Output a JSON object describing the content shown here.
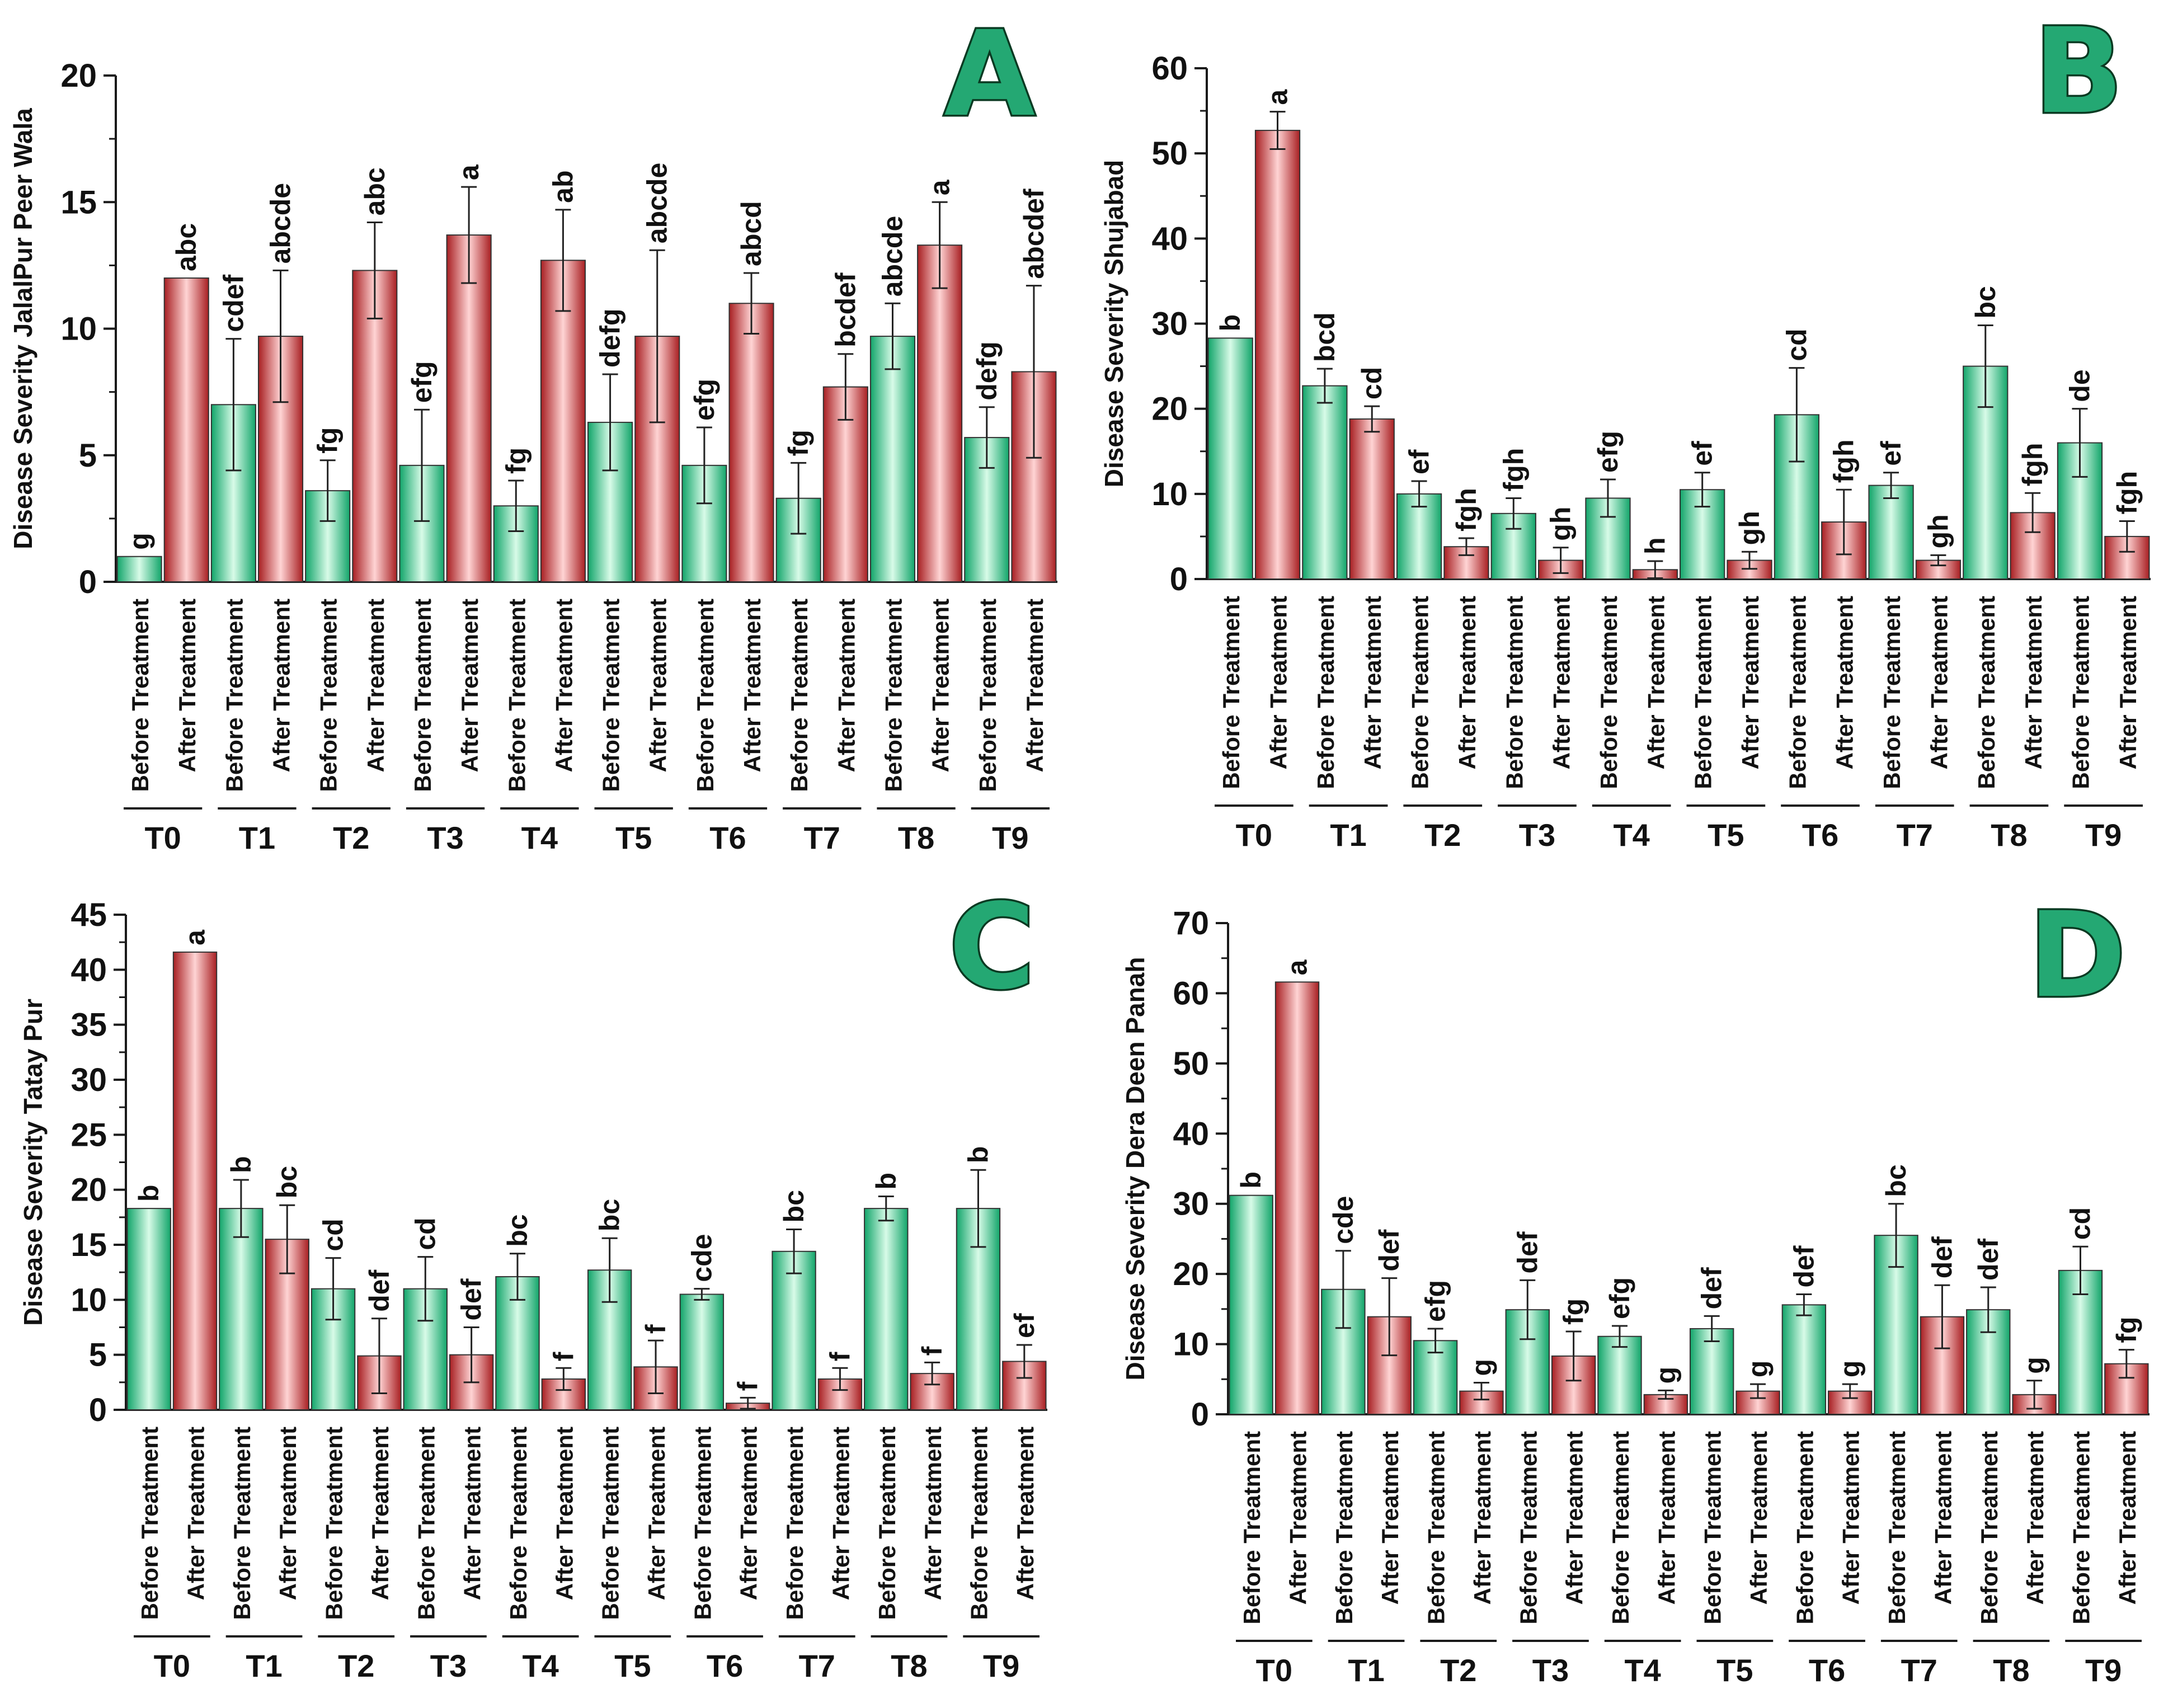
{
  "colors": {
    "before_edge": "#12a56a",
    "before_center": "#d8fbe8",
    "after_edge": "#a81f22",
    "after_center": "#ffd4d4",
    "letter_fill": "#24a873",
    "letter_stroke": "#0a3a22",
    "axis": "#1a1a1a",
    "text": "#111111"
  },
  "chart_data": [
    {
      "type": "bar",
      "panel": "A",
      "ylabel": "Disease Severity JalalPur Peer Wala",
      "ylim": [
        0,
        20
      ],
      "yticks": [
        "0",
        "5",
        "10",
        "15",
        "20"
      ],
      "groups": [
        "T0",
        "T1",
        "T2",
        "T3",
        "T4",
        "T5",
        "T6",
        "T7",
        "T8",
        "T9"
      ],
      "series": [
        {
          "name": "Before Treatment",
          "values": [
            1.0,
            7.0,
            3.6,
            4.6,
            3.0,
            6.3,
            4.6,
            3.3,
            9.7,
            5.7
          ],
          "errors": [
            0,
            2.6,
            1.2,
            2.2,
            1.0,
            1.9,
            1.5,
            1.4,
            1.3,
            1.2
          ],
          "letters": [
            "g",
            "cdef",
            "fg",
            "efg",
            "fg",
            "defg",
            "efg",
            "fg",
            "abcde",
            "defg"
          ]
        },
        {
          "name": "After Treatment",
          "values": [
            12.0,
            9.7,
            12.3,
            13.7,
            12.7,
            9.7,
            11.0,
            7.7,
            13.3,
            8.3
          ],
          "errors": [
            0,
            2.6,
            1.9,
            1.9,
            2.0,
            3.4,
            1.2,
            1.3,
            1.7,
            3.4
          ],
          "letters": [
            "abc",
            "abcde",
            "abc",
            "a",
            "ab",
            "abcde",
            "abcd",
            "bcdef",
            "a",
            "abcdef"
          ]
        }
      ]
    },
    {
      "type": "bar",
      "panel": "B",
      "ylabel": "Disease Severity Shujabad",
      "ylim": [
        0,
        60
      ],
      "yticks": [
        "0",
        "10",
        "20",
        "30",
        "40",
        "50",
        "60"
      ],
      "groups": [
        "T0",
        "T1",
        "T2",
        "T3",
        "T4",
        "T5",
        "T6",
        "T7",
        "T8",
        "T9"
      ],
      "series": [
        {
          "name": "Before Treatment",
          "values": [
            28.3,
            22.7,
            10.0,
            7.7,
            9.5,
            10.5,
            19.3,
            11.0,
            25.0,
            16.0
          ],
          "errors": [
            0,
            2.0,
            1.5,
            1.8,
            2.2,
            2.0,
            5.5,
            1.5,
            4.8,
            4.0
          ],
          "letters": [
            "b",
            "bcd",
            "ef",
            "fgh",
            "efg",
            "ef",
            "cd",
            "ef",
            "bc",
            "de"
          ]
        },
        {
          "name": "After Treatment",
          "values": [
            52.7,
            18.8,
            3.8,
            2.2,
            1.1,
            2.2,
            6.7,
            2.2,
            7.8,
            5.0
          ],
          "errors": [
            2.2,
            1.5,
            1.0,
            1.5,
            1.0,
            1.0,
            3.8,
            0.6,
            2.3,
            1.8
          ],
          "letters": [
            "a",
            "cd",
            "fgh",
            "gh",
            "h",
            "gh",
            "fgh",
            "gh",
            "fgh",
            "fgh"
          ]
        }
      ]
    },
    {
      "type": "bar",
      "panel": "C",
      "ylabel": "Disease Severity Tatay Pur",
      "ylim": [
        0,
        45
      ],
      "yticks": [
        "0",
        "5",
        "10",
        "15",
        "20",
        "25",
        "30",
        "35",
        "40",
        "45"
      ],
      "groups": [
        "T0",
        "T1",
        "T2",
        "T3",
        "T4",
        "T5",
        "T6",
        "T7",
        "T8",
        "T9"
      ],
      "series": [
        {
          "name": "Before Treatment",
          "values": [
            18.3,
            18.3,
            11.0,
            11.0,
            12.1,
            12.7,
            10.5,
            14.4,
            18.3,
            18.3
          ],
          "errors": [
            0,
            2.6,
            2.8,
            2.9,
            2.1,
            2.9,
            0.5,
            2.0,
            1.1,
            3.5
          ],
          "letters": [
            "b",
            "b",
            "cd",
            "cd",
            "bc",
            "bc",
            "cde",
            "bc",
            "b",
            "b"
          ]
        },
        {
          "name": "After Treatment",
          "values": [
            41.6,
            15.5,
            4.9,
            5.0,
            2.8,
            3.9,
            0.6,
            2.8,
            3.3,
            4.4
          ],
          "errors": [
            0,
            3.1,
            3.4,
            2.5,
            1.0,
            2.4,
            0.5,
            1.0,
            1.0,
            1.5
          ],
          "letters": [
            "a",
            "bc",
            "def",
            "def",
            "f",
            "f",
            "f",
            "f",
            "f",
            "ef"
          ]
        }
      ]
    },
    {
      "type": "bar",
      "panel": "D",
      "ylabel": "Disease Severity Dera Deen Panah",
      "ylim": [
        0,
        70
      ],
      "yticks": [
        "0",
        "10",
        "20",
        "30",
        "40",
        "50",
        "60",
        "70"
      ],
      "groups": [
        "T0",
        "T1",
        "T2",
        "T3",
        "T4",
        "T5",
        "T6",
        "T7",
        "T8",
        "T9"
      ],
      "series": [
        {
          "name": "Before Treatment",
          "values": [
            31.2,
            17.8,
            10.5,
            14.9,
            11.1,
            12.2,
            15.6,
            25.5,
            14.9,
            20.5
          ],
          "errors": [
            0,
            5.5,
            1.7,
            4.2,
            1.5,
            1.8,
            1.5,
            4.5,
            3.2,
            3.4
          ],
          "letters": [
            "b",
            "cde",
            "efg",
            "def",
            "efg",
            "def",
            "def",
            "bc",
            "def",
            "cd"
          ]
        },
        {
          "name": "After Treatment",
          "values": [
            61.6,
            13.9,
            3.3,
            8.3,
            2.8,
            3.3,
            3.3,
            13.9,
            2.8,
            7.2
          ],
          "errors": [
            0,
            5.5,
            1.2,
            3.5,
            0.6,
            1.0,
            1.0,
            4.5,
            2.0,
            2.0
          ],
          "letters": [
            "a",
            "def",
            "g",
            "fg",
            "g",
            "g",
            "g",
            "def",
            "g",
            "fg"
          ]
        }
      ]
    }
  ]
}
